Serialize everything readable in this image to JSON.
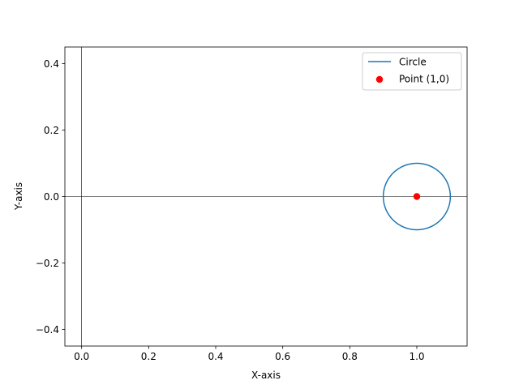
{
  "chart_data": {
    "type": "line",
    "xlabel": "X-axis",
    "ylabel": "Y-axis",
    "xlim": [
      -0.05,
      1.15
    ],
    "ylim": [
      -0.45,
      0.45
    ],
    "x_ticks": [
      0.0,
      0.2,
      0.4,
      0.6,
      0.8,
      1.0
    ],
    "x_tick_labels": [
      "0.0",
      "0.2",
      "0.4",
      "0.6",
      "0.8",
      "1.0"
    ],
    "y_ticks": [
      0.4,
      0.2,
      0.0,
      -0.2,
      -0.4
    ],
    "y_tick_labels": [
      "0.4",
      "0.2",
      "0.0",
      "−0.2",
      "−0.4"
    ],
    "reference_lines": {
      "x": 0,
      "y": 0
    },
    "grid": false,
    "legend_position": "top-right",
    "series": [
      {
        "name": "Circle",
        "kind": "line",
        "center": [
          1.0,
          0.0
        ],
        "radius": 0.1,
        "color": "#1f77b4"
      },
      {
        "name": "Point (1,0)",
        "kind": "scatter",
        "points": [
          [
            1.0,
            0.0
          ]
        ],
        "color": "#ff0000"
      }
    ]
  }
}
